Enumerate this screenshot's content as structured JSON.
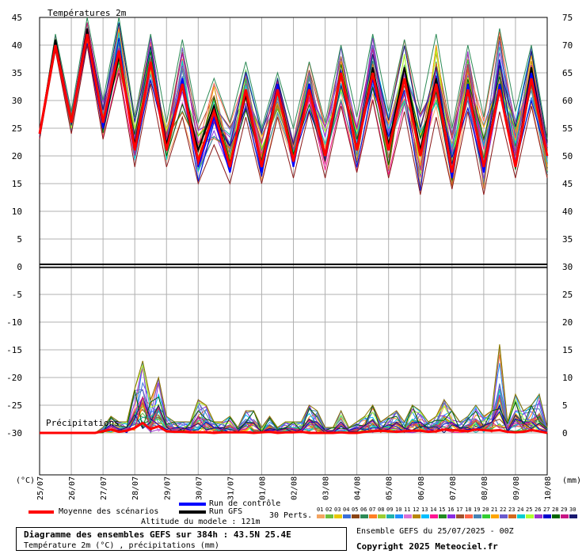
{
  "chart_data": {
    "type": "line",
    "title": "Températures 2m",
    "precip_title": "Précipitations",
    "xlabel_left": "(°C)",
    "xlabel_right": "(mm)",
    "x_ticks": [
      "25/07",
      "26/07",
      "27/07",
      "28/07",
      "29/07",
      "30/07",
      "31/07",
      "01/08",
      "02/08",
      "03/08",
      "04/08",
      "05/08",
      "06/08",
      "07/08",
      "08/08",
      "09/08",
      "10/08"
    ],
    "y_left_ticks": [
      45,
      40,
      35,
      30,
      25,
      20,
      15,
      10,
      5,
      0,
      -5,
      -10,
      -15,
      -20,
      -25,
      -30
    ],
    "y_right_ticks": [
      75,
      70,
      65,
      60,
      55,
      50,
      45,
      40,
      35,
      30,
      25,
      20,
      15,
      10,
      5,
      0
    ],
    "ylim_temp": [
      -30,
      45
    ],
    "ylim_precip": [
      0,
      75
    ],
    "grid": true,
    "temp_mean": [
      24,
      40,
      26,
      42,
      26,
      39,
      21,
      37,
      21,
      33,
      19,
      28,
      18,
      32,
      18,
      32,
      19,
      32,
      20,
      35,
      21,
      35,
      21,
      34,
      20,
      33,
      17,
      32,
      18,
      32,
      18,
      34,
      20
    ],
    "temp_control": [
      24,
      40,
      26,
      42,
      25,
      39,
      21,
      37,
      21,
      34,
      18,
      27,
      17,
      32,
      17,
      33,
      18,
      33,
      20,
      35,
      21,
      34,
      21,
      34,
      20,
      33,
      16,
      33,
      17,
      33,
      18,
      35,
      20
    ],
    "temp_gfs": [
      24,
      41,
      26,
      43,
      25,
      38,
      22,
      37,
      22,
      33,
      21,
      29,
      18,
      31,
      18,
      33,
      19,
      33,
      20,
      35,
      21,
      36,
      22,
      36,
      21,
      34,
      17,
      33,
      18,
      33,
      18,
      36,
      20
    ],
    "temp_perturbations_spread": {
      "upper": [
        24,
        42,
        28,
        45,
        30,
        45,
        27,
        42,
        26,
        41,
        26,
        34,
        26,
        37,
        25,
        35,
        25,
        37,
        26,
        40,
        27,
        42,
        28,
        41,
        28,
        42,
        25,
        40,
        27,
        43,
        28,
        40,
        23
      ],
      "lower": [
        23,
        39,
        24,
        40,
        23,
        35,
        18,
        33,
        18,
        27,
        15,
        22,
        15,
        27,
        15,
        27,
        16,
        28,
        16,
        29,
        17,
        30,
        16,
        28,
        13,
        27,
        14,
        28,
        13,
        28,
        16,
        29,
        16
      ]
    },
    "precip_mean": [
      0,
      0,
      0,
      0,
      0,
      0,
      0,
      0,
      0.3,
      0.6,
      0.2,
      0.4,
      0.9,
      1.8,
      0.7,
      1.2,
      0.3,
      0.2,
      0.2,
      0.1,
      0.1,
      0.1,
      0,
      0.1,
      0.1,
      0.1,
      0.1,
      0,
      0.1,
      0.2,
      0,
      0.1,
      0.1,
      0.2,
      0,
      0,
      0,
      0,
      0.1,
      0,
      0,
      0.2,
      0.3,
      0.4,
      0.3,
      0.2,
      0.3,
      0.4,
      0.4,
      0.2,
      0.3,
      0.6,
      0.5,
      0.4,
      0.3,
      0.6,
      0.5,
      0.4,
      0.5,
      0.2,
      0.1,
      0.2,
      0.5,
      0.3,
      0
    ],
    "precip_peaks": [
      0,
      0,
      0,
      0,
      0,
      0,
      0,
      0,
      1,
      3,
      2,
      2,
      8,
      13,
      6,
      10,
      3,
      2,
      2,
      2,
      6,
      5,
      2,
      2,
      3,
      1,
      4,
      4,
      1,
      3,
      1,
      2,
      2,
      2,
      5,
      4,
      1,
      1,
      4,
      1,
      2,
      3,
      5,
      2,
      3,
      4,
      2,
      5,
      4,
      2,
      3,
      6,
      4,
      2,
      3,
      5,
      3,
      4,
      16,
      2,
      7,
      4,
      5,
      7,
      1
    ],
    "legend": {
      "mean": "Moyenne des scénarios",
      "control": "Run de contrôle",
      "gfs": "Run GFS",
      "perts": "30 Perts.",
      "member_labels": [
        "01",
        "02",
        "03",
        "04",
        "05",
        "06",
        "07",
        "08",
        "09",
        "10",
        "11",
        "12",
        "13",
        "14",
        "15",
        "16",
        "17",
        "18",
        "19",
        "20",
        "21",
        "22",
        "23",
        "24",
        "25",
        "26",
        "27",
        "28",
        "29",
        "30"
      ],
      "member_colors": [
        "#f4a460",
        "#6fbf3f",
        "#e8c800",
        "#3a6fd8",
        "#8b4513",
        "#2e8b57",
        "#ff7f24",
        "#9acd32",
        "#20b2aa",
        "#1e90ff",
        "#da70d6",
        "#b8860b",
        "#00bfff",
        "#ff1493",
        "#228b22",
        "#8a2be2",
        "#a0522d",
        "#ff6347",
        "#4682b4",
        "#32cd32",
        "#ffa500",
        "#6a5acd",
        "#d2691e",
        "#00ced1",
        "#adff2f",
        "#9932cc",
        "#0000cd",
        "#006400",
        "#c71585",
        "#191970"
      ]
    },
    "colors": {
      "mean": "#ff0000",
      "control": "#0000ff",
      "gfs": "#000000",
      "grid": "#b0b0b0"
    }
  },
  "footer": {
    "altitude": "Altitude du modele : 121m",
    "caption_title": "Diagramme des ensembles GEFS sur 384h : 43.5N 25.4E",
    "caption_sub": "Température 2m (°C) , précipitations (mm)",
    "run_info": "Ensemble GEFS du 25/07/2025 - 00Z",
    "copyright": "Copyright 2025 Meteociel.fr"
  }
}
